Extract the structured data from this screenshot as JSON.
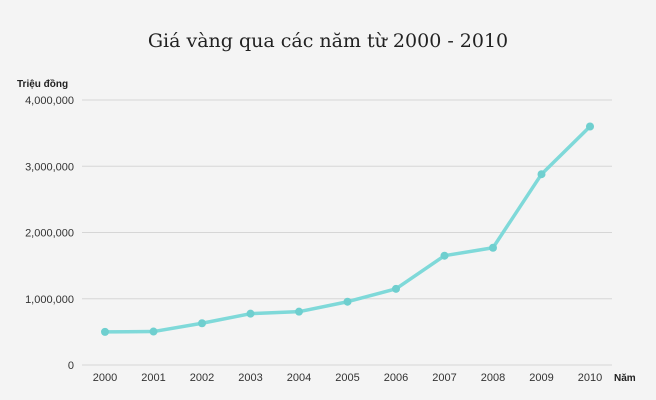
{
  "chart_data": {
    "type": "line",
    "title": "Giá vàng qua các năm từ 2000 - 2010",
    "xlabel": "Năm",
    "ylabel": "Triệu đồng",
    "categories": [
      "2000",
      "2001",
      "2002",
      "2003",
      "2004",
      "2005",
      "2006",
      "2007",
      "2008",
      "2009",
      "2010"
    ],
    "series": [
      {
        "values": [
          500000,
          505000,
          630000,
          775000,
          805000,
          955000,
          1150000,
          1650000,
          1770000,
          2880000,
          3600000
        ]
      }
    ],
    "ylim": [
      0,
      4000000
    ],
    "yticks": [
      0,
      1000000,
      2000000,
      3000000,
      4000000
    ],
    "ytick_labels": [
      "0",
      "1,000,000",
      "2,000,000",
      "3,000,000",
      "4,000,000"
    ],
    "grid": true,
    "line_color": "#7fd9d9",
    "marker_color": "#6fcfcf"
  }
}
